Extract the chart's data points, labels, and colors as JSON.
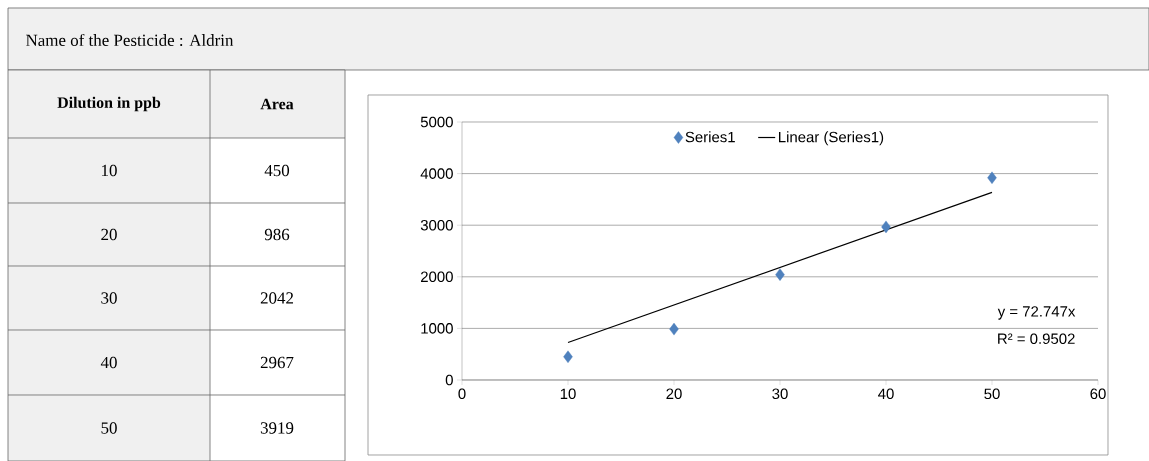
{
  "chart_data": {
    "type": "scatter",
    "title": "Name of the Pesticide  :  Aldrin",
    "series": [
      {
        "name": "Series1",
        "color": "#4f81bd",
        "marker": "diamond",
        "x": [
          10,
          20,
          30,
          40,
          50
        ],
        "values": [
          450,
          986,
          2042,
          2967,
          3919
        ]
      },
      {
        "name": "Linear (Series1)",
        "type": "line",
        "marker": "none",
        "color": "#000000",
        "x": [
          10,
          50
        ],
        "values": [
          727,
          3637
        ]
      }
    ],
    "annotations": [
      "Dilution in ppb",
      "Area",
      "10",
      "450",
      "20",
      "986",
      "30",
      "2042",
      "40",
      "2967",
      "50",
      "3919",
      "y = 72.747x",
      "R² = 0.9502"
    ],
    "legend": "top",
    "grid": "y",
    "xlim": [
      0,
      60
    ],
    "xticks": [
      0,
      10,
      20,
      30,
      40,
      50,
      60
    ],
    "ylim": [
      0,
      5000
    ],
    "yticks": [
      0,
      1000,
      2000,
      3000,
      4000,
      5000
    ]
  }
}
